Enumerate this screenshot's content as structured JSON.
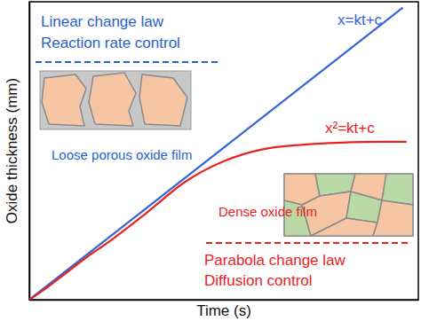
{
  "chart_data": {
    "type": "line",
    "x_label": "Time (s)",
    "y_label": "Oxide thickness (mm)",
    "xlim": [
      0,
      10
    ],
    "ylim": [
      0,
      10
    ],
    "tick_labels": false,
    "series": [
      {
        "name": "x=kt+c",
        "color": "#3566d6",
        "x": [
          0,
          9.6
        ],
        "values": [
          0,
          9.8
        ]
      },
      {
        "name": "x²=kt+c",
        "color": "#e8231f",
        "x": [
          0,
          0.5,
          1,
          1.5,
          2,
          3,
          4,
          5,
          6,
          7,
          8,
          9,
          9.7
        ],
        "values": [
          0,
          0.45,
          0.95,
          1.45,
          1.9,
          2.9,
          3.95,
          4.65,
          5.05,
          5.2,
          5.27,
          5.3,
          5.3
        ]
      }
    ],
    "annotations": [
      {
        "text": "Linear change law",
        "color": "#2b5fcc"
      },
      {
        "text": "Reaction rate control",
        "color": "#2b5fcc"
      },
      {
        "text": "Loose porous oxide film",
        "color": "#2b5fcc"
      },
      {
        "text": "Dense oxide film",
        "color": "#e8231f"
      },
      {
        "text": "Parabola change law",
        "color": "#e8231f"
      },
      {
        "text": "Diffusion control",
        "color": "#e8231f"
      }
    ]
  }
}
